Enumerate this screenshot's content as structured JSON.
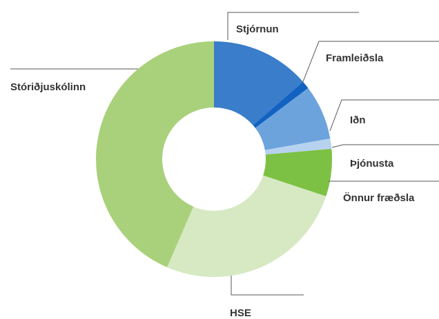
{
  "chart_data": {
    "type": "donut",
    "categories": [
      "Stjórnun",
      "Framleiðsla",
      "Iðn",
      "Þjónusta",
      "Önnur fræðsla",
      "HSE",
      "Stóriðjuskólinn"
    ],
    "values": [
      13.6,
      1.1,
      7.5,
      1.4,
      6.5,
      26.4,
      43.5
    ],
    "colors": [
      "#3a7dca",
      "#1262c2",
      "#6ca3dd",
      "#b7d2ef",
      "#7cc143",
      "#d6e9c3",
      "#a9d17b"
    ]
  }
}
